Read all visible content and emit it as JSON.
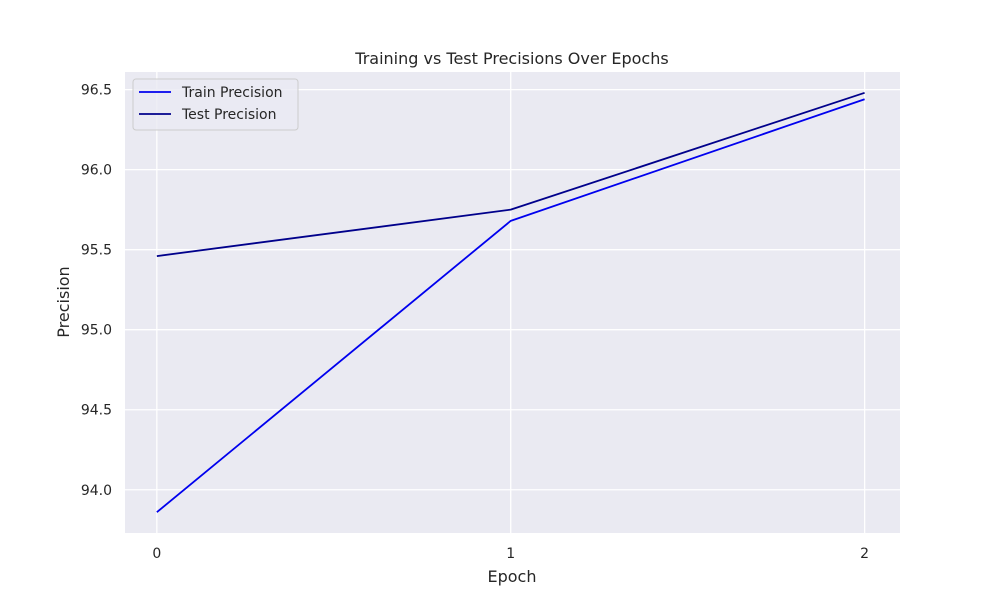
{
  "chart_data": {
    "type": "line",
    "title": "Training vs Test Precisions Over Epochs",
    "xlabel": "Epoch",
    "ylabel": "Precision",
    "x": [
      0,
      1,
      2
    ],
    "x_ticks": [
      "0",
      "1",
      "2"
    ],
    "y_ticks": [
      "94.0",
      "94.5",
      "95.0",
      "95.5",
      "96.0",
      "96.5"
    ],
    "y_tick_values": [
      94.0,
      94.5,
      95.0,
      95.5,
      96.0,
      96.5
    ],
    "xlim": [
      -0.09,
      2.1
    ],
    "ylim": [
      93.73,
      96.61
    ],
    "grid": true,
    "legend_position": "top-left",
    "background_color": "#eaeaf2",
    "grid_color": "#ffffff",
    "series": [
      {
        "name": "Train Precision",
        "color": "#0000ee",
        "values": [
          93.86,
          95.68,
          96.44
        ]
      },
      {
        "name": "Test Precision",
        "color": "#00008b",
        "values": [
          95.46,
          95.75,
          96.48
        ]
      }
    ]
  }
}
